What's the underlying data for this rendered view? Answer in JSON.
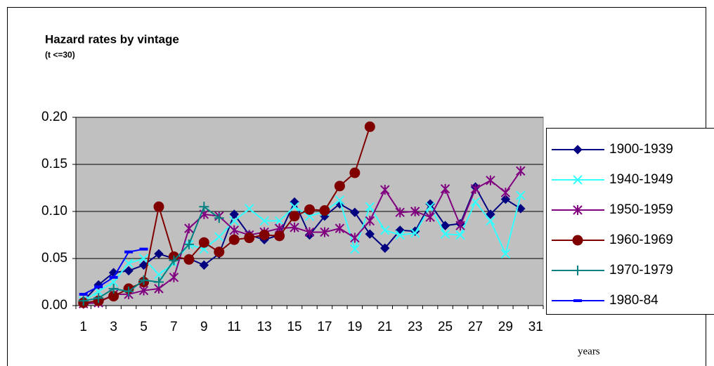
{
  "chart_data": {
    "type": "line",
    "title": "Hazard rates by vintage",
    "subtitle": "(t <=30)",
    "x_label": "years",
    "categories": [
      "1",
      null,
      "3",
      null,
      "5",
      null,
      "7",
      null,
      "9",
      null,
      "11",
      null,
      "13",
      null,
      "15",
      null,
      "17",
      null,
      "19",
      null,
      "21",
      null,
      "23",
      null,
      "25",
      null,
      "27",
      null,
      "29",
      null,
      "31"
    ],
    "ylim": [
      0,
      0.2
    ],
    "yticks": [
      {
        "value": 0,
        "label": "0.00"
      },
      {
        "value": 0.05,
        "label": "0.05"
      },
      {
        "value": 0.1,
        "label": "0.10"
      },
      {
        "value": 0.15,
        "label": "0.15"
      },
      {
        "value": 0.2,
        "label": "0.20"
      }
    ],
    "grid": true,
    "legend": "right",
    "series": [
      {
        "name": "1900-1939",
        "color": "#000080",
        "marker": "diamond",
        "values": [
          0.005,
          0.022,
          0.035,
          0.037,
          0.043,
          0.055,
          0.05,
          0.05,
          0.043,
          0.055,
          0.097,
          0.075,
          0.07,
          0.075,
          0.11,
          0.075,
          0.095,
          0.108,
          0.099,
          0.076,
          0.061,
          0.08,
          0.079,
          0.108,
          0.085,
          0.087,
          0.126,
          0.097,
          0.113,
          0.103,
          null
        ]
      },
      {
        "name": "1940-1949",
        "color": "#33ffff",
        "marker": "x",
        "values": [
          0.005,
          0.015,
          0.025,
          0.045,
          0.05,
          0.033,
          0.045,
          0.065,
          0.06,
          0.073,
          0.09,
          0.103,
          0.09,
          0.09,
          0.105,
          0.095,
          0.1,
          0.112,
          0.06,
          0.105,
          0.08,
          0.075,
          0.077,
          0.105,
          0.076,
          0.075,
          0.11,
          0.09,
          0.055,
          0.117,
          null
        ]
      },
      {
        "name": "1950-1959",
        "color": "#800080",
        "marker": "star",
        "values": [
          0.002,
          0.003,
          0.012,
          0.012,
          0.016,
          0.018,
          0.03,
          0.082,
          0.097,
          0.095,
          0.08,
          0.075,
          0.078,
          0.082,
          0.083,
          0.078,
          0.078,
          0.082,
          0.072,
          0.09,
          0.123,
          0.099,
          0.1,
          0.094,
          0.124,
          0.085,
          0.124,
          0.133,
          0.12,
          0.143,
          null
        ]
      },
      {
        "name": "1960-1969",
        "color": "#800000",
        "marker": "circle",
        "values": [
          0.003,
          0.005,
          0.01,
          0.018,
          0.025,
          0.105,
          0.052,
          0.049,
          0.067,
          0.057,
          0.07,
          0.072,
          0.075,
          0.074,
          0.095,
          0.102,
          0.101,
          0.127,
          0.141,
          0.19,
          null,
          null,
          null,
          null,
          null,
          null,
          null,
          null,
          null,
          null,
          null
        ]
      },
      {
        "name": "1970-1979",
        "color": "#008080",
        "marker": "plus",
        "values": [
          0.005,
          0.008,
          0.018,
          0.015,
          0.027,
          0.025,
          0.048,
          0.065,
          0.105,
          0.093,
          null,
          null,
          null,
          null,
          null,
          null,
          null,
          null,
          null,
          null,
          null,
          null,
          null,
          null,
          null,
          null,
          null,
          null,
          null,
          null,
          null
        ]
      },
      {
        "name": "1980-84",
        "color": "#0000ff",
        "marker": "dash",
        "values": [
          0.012,
          0.02,
          0.03,
          0.057,
          0.06,
          null,
          null,
          null,
          null,
          null,
          null,
          null,
          null,
          null,
          null,
          null,
          null,
          null,
          null,
          null,
          null,
          null,
          null,
          null,
          null,
          null,
          null,
          null,
          null,
          null,
          null
        ]
      }
    ]
  }
}
